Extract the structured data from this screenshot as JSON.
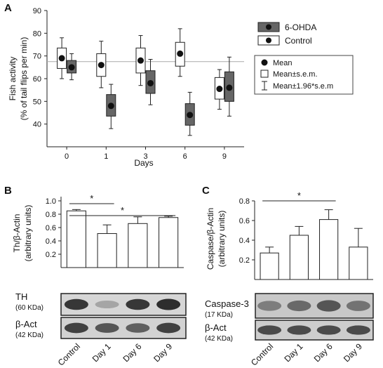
{
  "panel_labels": {
    "a": "A",
    "b": "B",
    "c": "C"
  },
  "chart_data": [
    {
      "type": "box",
      "panel": "A",
      "ylabel_line1": "Fish activity",
      "ylabel_line2": "(% of tail flips per min)",
      "xlabel": "Days",
      "ylim": [
        30,
        90
      ],
      "yticks": [
        40,
        50,
        60,
        70,
        80,
        90
      ],
      "categories": [
        "0",
        "1",
        "3",
        "6",
        "9"
      ],
      "reference_line": 67.5,
      "legend_placement": "right",
      "series": [
        {
          "name": "Control",
          "fill": "#ffffff",
          "boxes": [
            {
              "mean": 69,
              "sem_low": 64.5,
              "sem_high": 73.5,
              "ci_low": 60,
              "ci_high": 78
            },
            {
              "mean": 66,
              "sem_low": 61,
              "sem_high": 71,
              "ci_low": 56,
              "ci_high": 76.5
            },
            {
              "mean": 68,
              "sem_low": 62.5,
              "sem_high": 73.5,
              "ci_low": 57,
              "ci_high": 79
            },
            {
              "mean": 71,
              "sem_low": 65.5,
              "sem_high": 76,
              "ci_low": 61,
              "ci_high": 82
            },
            {
              "mean": 55.5,
              "sem_low": 51,
              "sem_high": 60.5,
              "ci_low": 46.5,
              "ci_high": 64
            }
          ]
        },
        {
          "name": "6-OHDA",
          "fill": "#666666",
          "boxes": [
            {
              "mean": 65,
              "sem_low": 62.5,
              "sem_high": 68,
              "ci_low": 59.5,
              "ci_high": 71
            },
            {
              "mean": 48,
              "sem_low": 43.5,
              "sem_high": 53,
              "ci_low": 38,
              "ci_high": 57.5
            },
            {
              "mean": 58,
              "sem_low": 53.5,
              "sem_high": 63.5,
              "ci_low": 48.5,
              "ci_high": 68.5
            },
            {
              "mean": 44,
              "sem_low": 39.5,
              "sem_high": 49,
              "ci_low": 35,
              "ci_high": 54
            },
            {
              "mean": 56,
              "sem_low": 50,
              "sem_high": 63,
              "ci_low": 43.5,
              "ci_high": 69.5
            }
          ]
        }
      ],
      "legend_extra": [
        "Mean",
        "Mean±s.e.m.",
        "Mean±1.96*s.e.m"
      ]
    },
    {
      "type": "bar",
      "panel": "B",
      "ylabel_line1": "Th/β-Actin",
      "ylabel_line2": "(arbitrary units)",
      "ylim": [
        0,
        1.0
      ],
      "yticks": [
        0.2,
        0.4,
        0.6,
        0.8,
        1.0
      ],
      "categories": [
        "Control",
        "Day 1",
        "Day 6",
        "Day 9"
      ],
      "values": [
        0.85,
        0.51,
        0.66,
        0.75
      ],
      "errors": [
        0.02,
        0.13,
        0.1,
        0.02
      ],
      "significance": [
        {
          "from": 0,
          "to": 1,
          "label": "*"
        },
        {
          "from": 0,
          "to": 3,
          "label": "*"
        }
      ]
    },
    {
      "type": "bar",
      "panel": "C",
      "ylabel_line1": "Caspase/β-Actin",
      "ylabel_line2": "(arbitrary units)",
      "ylim": [
        0,
        0.8
      ],
      "yticks": [
        0.2,
        0.4,
        0.6,
        0.8
      ],
      "categories": [
        "Control",
        "Day 1",
        "Day 6",
        "Day 9"
      ],
      "values": [
        0.27,
        0.45,
        0.61,
        0.33
      ],
      "errors": [
        0.06,
        0.09,
        0.1,
        0.19
      ],
      "significance": [
        {
          "from": 0,
          "to": 2,
          "label": "*"
        }
      ]
    }
  ],
  "blots": {
    "b": {
      "top_label": "TH",
      "top_size": "(60 KDa)",
      "bottom_label": "β-Act",
      "bottom_size": "(42 KDa)",
      "top_intensity": [
        0.9,
        0.35,
        0.9,
        0.95
      ],
      "bottom_intensity": [
        0.85,
        0.75,
        0.7,
        0.85
      ]
    },
    "c": {
      "top_label": "Caspase-3",
      "top_size": "(17 KDa)",
      "bottom_label": "β-Act",
      "bottom_size": "(42 KDa)",
      "top_intensity": [
        0.55,
        0.65,
        0.75,
        0.6
      ],
      "bottom_intensity": [
        0.8,
        0.8,
        0.8,
        0.8
      ]
    }
  }
}
